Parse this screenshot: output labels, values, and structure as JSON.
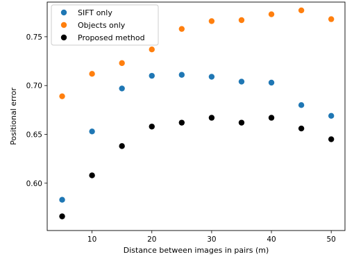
{
  "chart_data": {
    "type": "scatter",
    "title": "",
    "xlabel": "Distance between images in pairs (m)",
    "ylabel": "Positional error",
    "xlim": [
      2.5,
      52.3
    ],
    "ylim": [
      0.5515,
      0.7855
    ],
    "xticks": [
      10,
      20,
      30,
      40,
      50
    ],
    "yticks": [
      0.6,
      0.65,
      0.7,
      0.75
    ],
    "xtick_labels": [
      "10",
      "20",
      "30",
      "40",
      "50"
    ],
    "ytick_labels": [
      "0.60",
      "0.65",
      "0.70",
      "0.75"
    ],
    "grid": false,
    "legend_position": "top-left",
    "x": [
      5,
      10,
      15,
      20,
      25,
      30,
      35,
      40,
      45,
      50
    ],
    "series": [
      {
        "name": "SIFT only",
        "color": "#1f77b4",
        "values": [
          0.583,
          0.653,
          0.697,
          0.71,
          0.711,
          0.709,
          0.704,
          0.703,
          0.68,
          0.669
        ]
      },
      {
        "name": "Objects only",
        "color": "#ff7f0e",
        "values": [
          0.689,
          0.712,
          0.723,
          0.737,
          0.758,
          0.766,
          0.767,
          0.773,
          0.777,
          0.768
        ]
      },
      {
        "name": "Proposed method",
        "color": "#000000",
        "values": [
          0.566,
          0.608,
          0.638,
          0.658,
          0.662,
          0.667,
          0.662,
          0.667,
          0.656,
          0.645
        ]
      }
    ]
  }
}
